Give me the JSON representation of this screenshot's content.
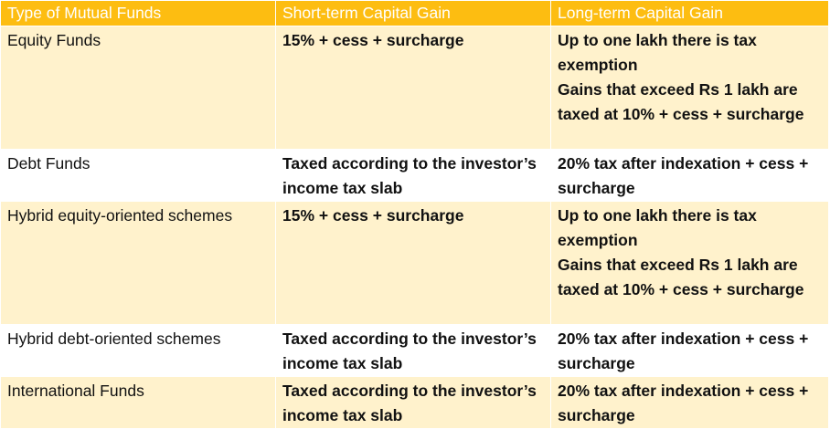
{
  "table": {
    "headers": [
      "Type of Mutual Funds",
      "Short-term Capital Gain",
      "Long-term Capital Gain"
    ],
    "rows": [
      {
        "type": "Equity Funds",
        "short_term": "15% + cess + surcharge",
        "long_term_lines": [
          "Up to one lakh there is tax exemption",
          "Gains that exceed Rs 1 lakh are taxed at 10% + cess + surcharge"
        ]
      },
      {
        "type": "Debt Funds",
        "short_term": "Taxed according to the investor’s income tax slab",
        "long_term_lines": [
          "20% tax after indexation + cess + surcharge"
        ]
      },
      {
        "type": "Hybrid equity-oriented schemes",
        "short_term": "15% + cess + surcharge",
        "long_term_lines": [
          "Up to one lakh there is tax exemption",
          "Gains that exceed Rs 1 lakh are taxed at 10% + cess + surcharge"
        ]
      },
      {
        "type": "Hybrid debt-oriented schemes",
        "short_term": "Taxed according to the investor’s income tax slab",
        "long_term_lines": [
          "20% tax after indexation + cess + surcharge"
        ]
      },
      {
        "type": "International Funds",
        "short_term": "Taxed according to the investor’s income tax slab",
        "long_term_lines": [
          "20% tax after indexation + cess + surcharge"
        ]
      }
    ]
  },
  "colors": {
    "header_bg": "#fdbd11",
    "header_text": "#ffffff",
    "band_alt": "#fff2cc",
    "band_white": "#ffffff"
  }
}
